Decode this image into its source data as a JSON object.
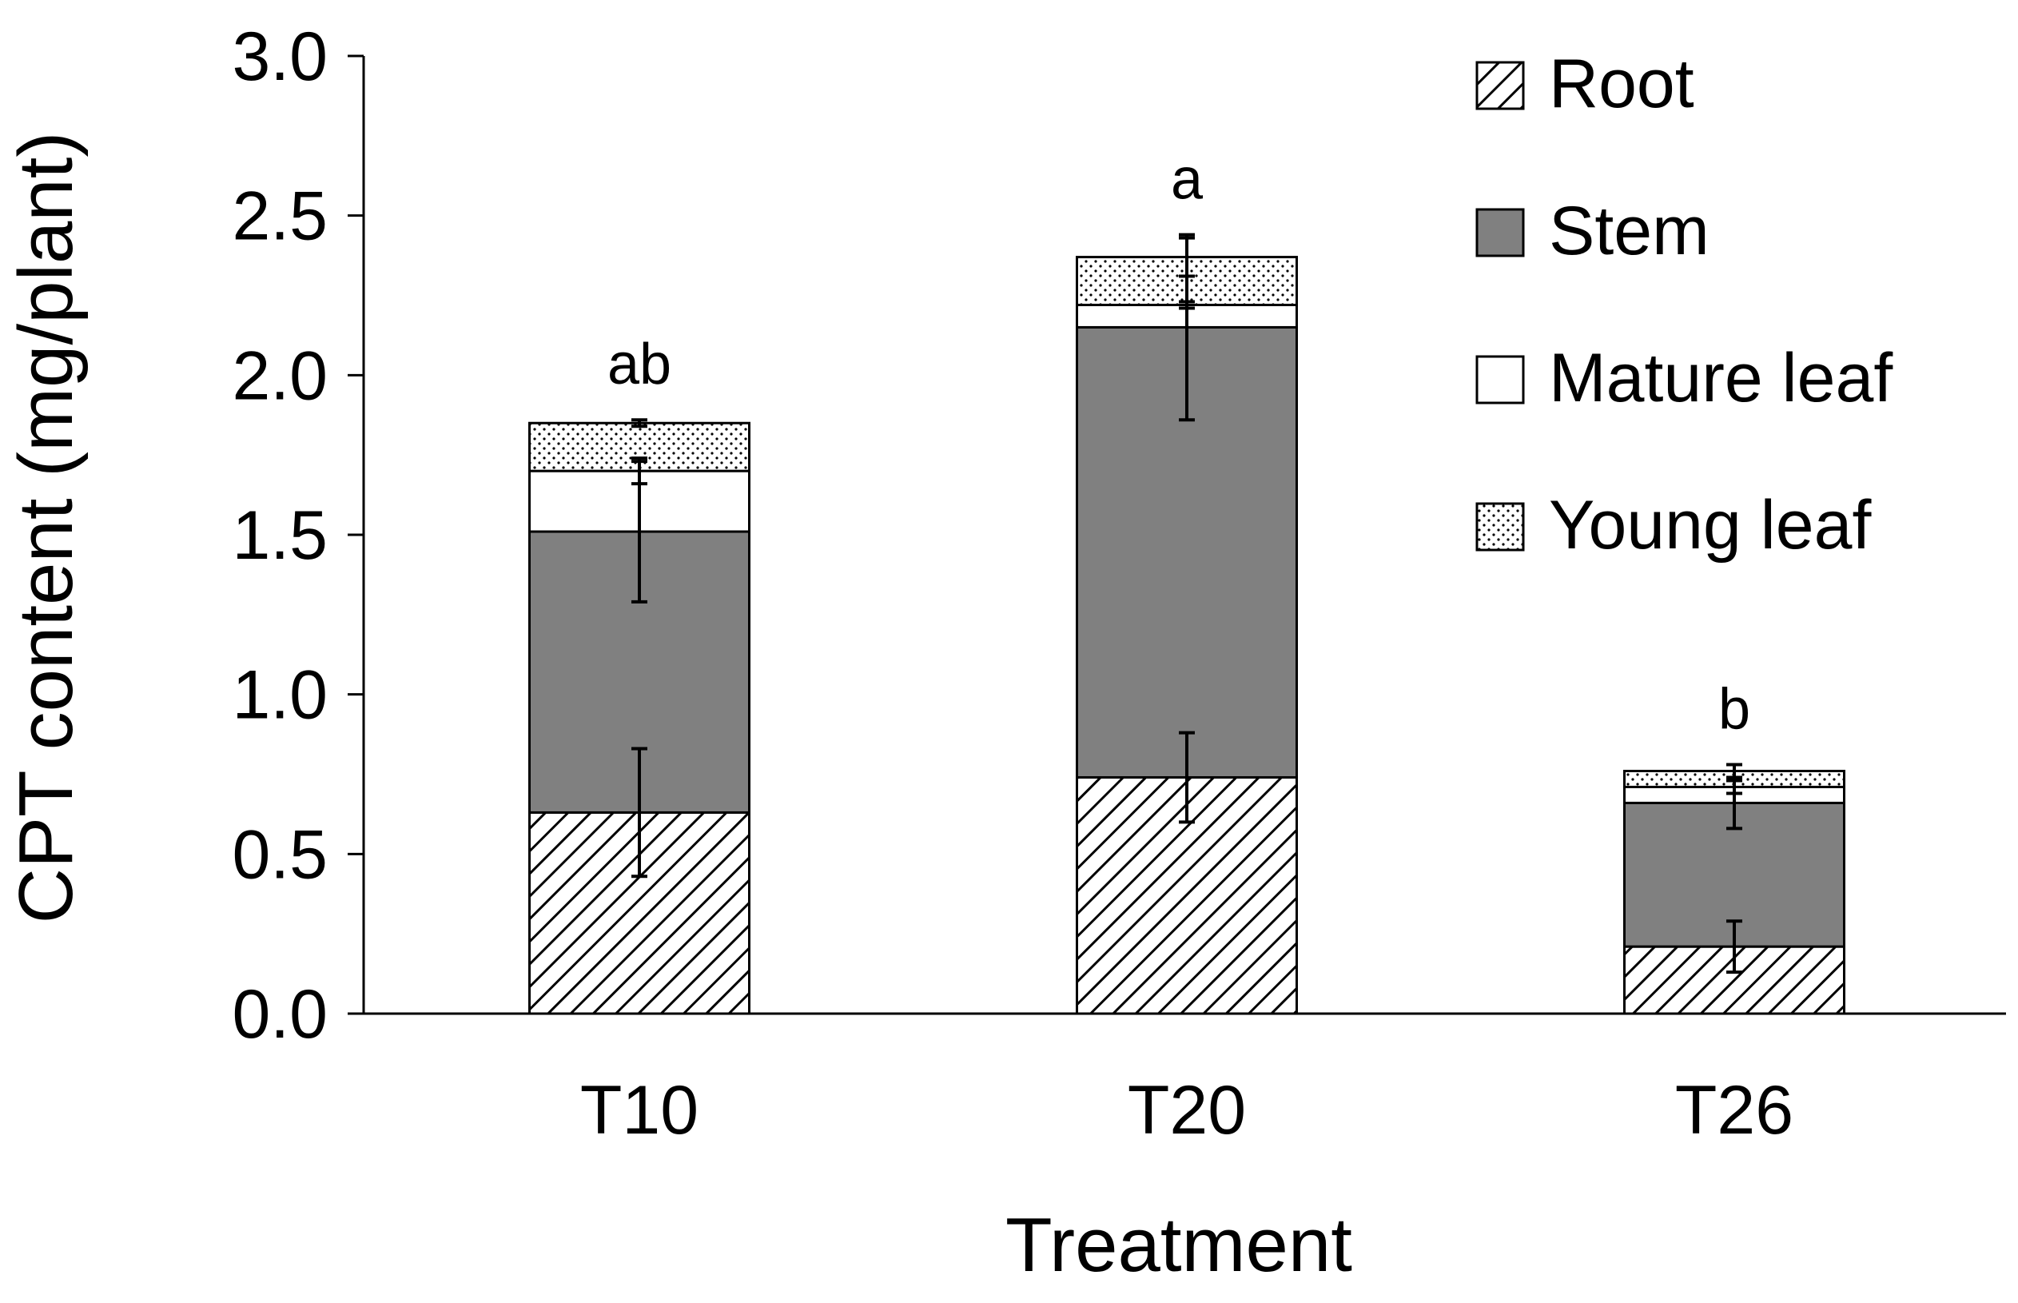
{
  "chart_data": {
    "type": "bar",
    "stacked": true,
    "xlabel": "Treatment",
    "ylabel": "CPT content (mg/plant)",
    "ylim": [
      0,
      3.0
    ],
    "yticks": [
      "0.0",
      "0.5",
      "1.0",
      "1.5",
      "2.0",
      "2.5",
      "3.0"
    ],
    "categories": [
      "T10",
      "T20",
      "T26"
    ],
    "series": [
      {
        "name": "Root",
        "fill": "hatch",
        "values": [
          0.63,
          0.74,
          0.21
        ],
        "errors": [
          0.2,
          0.14,
          0.08
        ]
      },
      {
        "name": "Stem",
        "fill": "#808080",
        "values": [
          0.88,
          1.41,
          0.45
        ],
        "errors": [
          0.22,
          0.29,
          0.08
        ]
      },
      {
        "name": "Mature leaf",
        "fill": "#ffffff",
        "values": [
          0.19,
          0.07,
          0.05
        ],
        "errors": [
          0.04,
          0.01,
          0.02
        ]
      },
      {
        "name": "Young leaf",
        "fill": "dots",
        "values": [
          0.15,
          0.15,
          0.05
        ],
        "errors": [
          0.01,
          0.06,
          0.02
        ]
      }
    ],
    "significance": [
      "ab",
      "a",
      "b"
    ],
    "legend_position": "top-right",
    "grid": false
  }
}
